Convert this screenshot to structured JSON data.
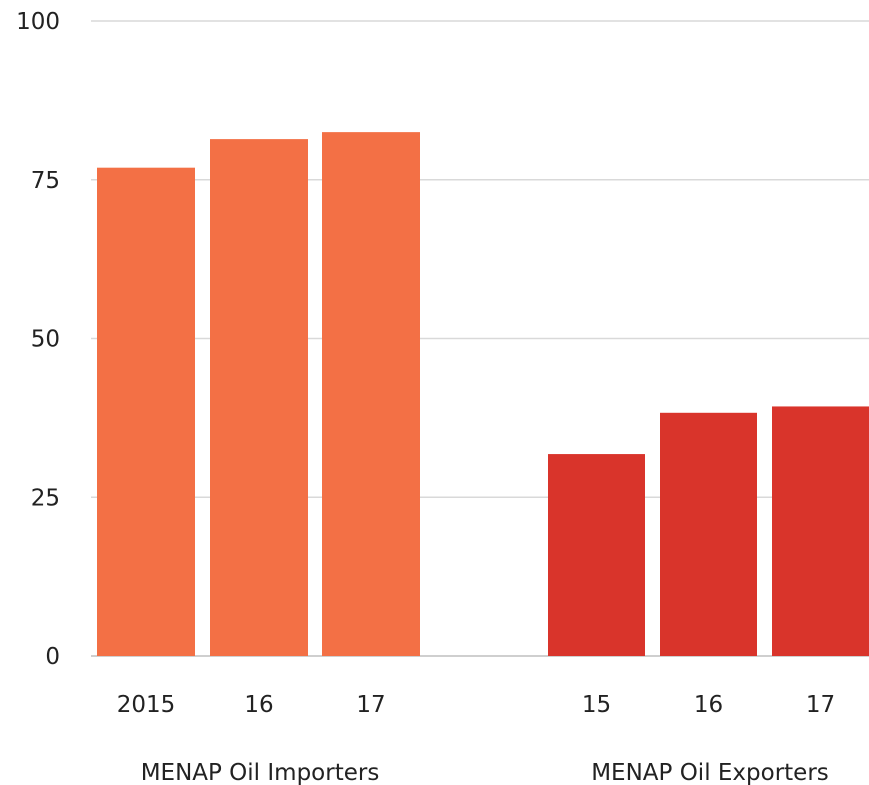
{
  "chart_data": {
    "type": "bar",
    "title": "",
    "xlabel": "",
    "ylabel": "",
    "ylim": [
      0,
      100
    ],
    "yticks": [
      "0",
      "25",
      "50",
      "75",
      "100"
    ],
    "grid": true,
    "legend": "none",
    "groups": [
      {
        "label": "MENAP Oil Importers",
        "color": "#f37045",
        "categories": [
          "2015",
          "16",
          "17"
        ],
        "values": [
          76.9,
          81.4,
          82.5
        ]
      },
      {
        "label": "MENAP Oil Exporters",
        "color": "#d9342b",
        "categories": [
          "15",
          "16",
          "17"
        ],
        "values": [
          31.8,
          38.3,
          39.3
        ]
      }
    ]
  }
}
